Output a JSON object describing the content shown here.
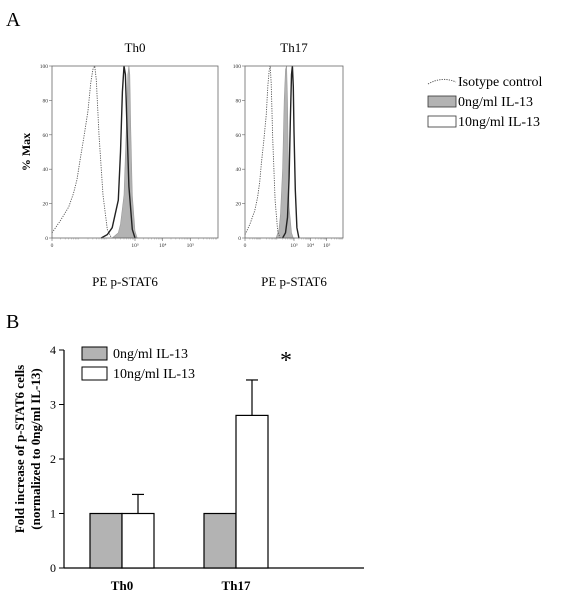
{
  "panel_a_label": "A",
  "panel_b_label": "B",
  "chart_data": [
    {
      "type": "line",
      "title": "Th0",
      "xlabel": "PE p-STAT6",
      "ylabel": "% Max",
      "x_scale": "log",
      "xlim": [
        1,
        1000000
      ],
      "ylim": [
        0,
        100
      ],
      "yticks": [
        "0",
        "20",
        "40",
        "60",
        "80",
        "100"
      ],
      "xticks": [
        "0",
        "10³",
        "10⁴",
        "10⁵"
      ],
      "series": [
        {
          "name": "Isotype control",
          "style": "dotted",
          "x": [
            1,
            2,
            4,
            6,
            8,
            10,
            14,
            20,
            25,
            30,
            35,
            40,
            50,
            70,
            100,
            140
          ],
          "y": [
            3,
            10,
            18,
            26,
            34,
            44,
            58,
            74,
            90,
            98,
            100,
            92,
            60,
            25,
            5,
            0
          ]
        },
        {
          "name": "0ng/ml IL-13",
          "style": "filled",
          "color": "#b3b3b3",
          "x": [
            150,
            250,
            300,
            400,
            500,
            550,
            600,
            650,
            700,
            800,
            1000,
            1200
          ],
          "y": [
            0,
            3,
            8,
            25,
            70,
            95,
            100,
            95,
            65,
            25,
            4,
            0
          ]
        },
        {
          "name": "10ng/ml IL-13",
          "style": "open",
          "x": [
            60,
            100,
            150,
            250,
            300,
            350,
            400,
            450,
            500,
            600,
            800,
            1000
          ],
          "y": [
            0,
            2,
            6,
            22,
            50,
            85,
            100,
            95,
            70,
            30,
            5,
            0
          ]
        }
      ]
    },
    {
      "type": "line",
      "title": "Th17",
      "xlabel": "PE p-STAT6",
      "ylabel": "",
      "x_scale": "log",
      "xlim": [
        1,
        1000000
      ],
      "ylim": [
        0,
        100
      ],
      "yticks": [
        "0",
        "20",
        "40",
        "60",
        "80",
        "100"
      ],
      "xticks": [
        "0",
        "10³",
        "10⁴",
        "10⁵"
      ],
      "series": [
        {
          "name": "Isotype control",
          "style": "dotted",
          "x": [
            1,
            2,
            4,
            6,
            8,
            10,
            14,
            20,
            25,
            30,
            35,
            40,
            50,
            70,
            100,
            140
          ],
          "y": [
            2,
            8,
            16,
            24,
            33,
            43,
            56,
            72,
            88,
            97,
            100,
            90,
            58,
            22,
            4,
            0
          ]
        },
        {
          "name": "0ng/ml IL-13",
          "style": "filled",
          "color": "#b3b3b3",
          "x": [
            80,
            120,
            150,
            200,
            250,
            300,
            350,
            400,
            450,
            500,
            700,
            900
          ],
          "y": [
            0,
            5,
            14,
            40,
            80,
            98,
            100,
            80,
            45,
            18,
            3,
            0
          ]
        },
        {
          "name": "10ng/ml IL-13",
          "style": "open",
          "x": [
            200,
            300,
            400,
            500,
            600,
            700,
            800,
            900,
            1000,
            1200,
            1500,
            2000
          ],
          "y": [
            0,
            3,
            12,
            35,
            70,
            95,
            100,
            88,
            62,
            28,
            6,
            0
          ]
        }
      ]
    },
    {
      "type": "bar",
      "categories": [
        "Th0",
        "Th17"
      ],
      "ylabel": "Fold increase of p-STAT6 cells\n(normalized to 0ng/ml IL-13)",
      "ylim": [
        0,
        4
      ],
      "yticks": [
        0,
        1,
        2,
        3,
        4
      ],
      "series": [
        {
          "name": "0ng/ml IL-13",
          "color": "#b3b3b3",
          "values": [
            1.0,
            1.0
          ],
          "error": [
            0,
            0
          ]
        },
        {
          "name": "10ng/ml IL-13",
          "color": "#ffffff",
          "values": [
            1.0,
            2.8
          ],
          "error": [
            0.35,
            0.65
          ]
        }
      ],
      "annotation": "*"
    }
  ]
}
